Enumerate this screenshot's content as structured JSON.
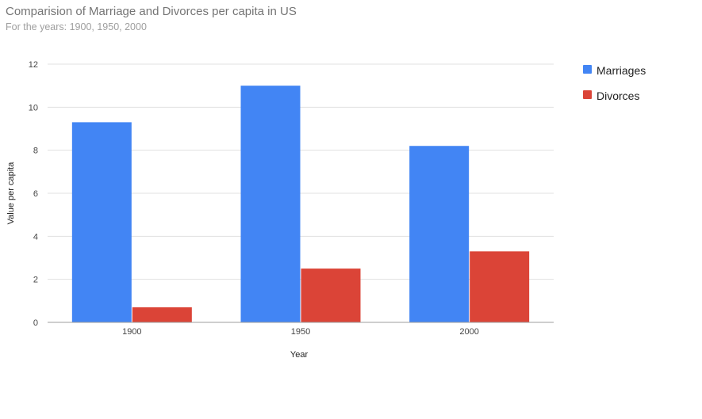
{
  "chart_data": {
    "type": "bar",
    "title": "Comparision of Marriage and Divorces per capita in US",
    "subtitle": "For the years: 1900, 1950, 2000",
    "xlabel": "Year",
    "ylabel": "Value per capita",
    "categories": [
      "1900",
      "1950",
      "2000"
    ],
    "series": [
      {
        "name": "Marriages",
        "color": "#4285f4",
        "values": [
          9.3,
          11.0,
          8.2
        ]
      },
      {
        "name": "Divorces",
        "color": "#db4437",
        "values": [
          0.7,
          2.5,
          3.3
        ]
      }
    ],
    "ylim": [
      0,
      12
    ],
    "yticks": [
      0,
      2,
      4,
      6,
      8,
      10,
      12
    ],
    "grid": true,
    "legend_position": "right"
  }
}
